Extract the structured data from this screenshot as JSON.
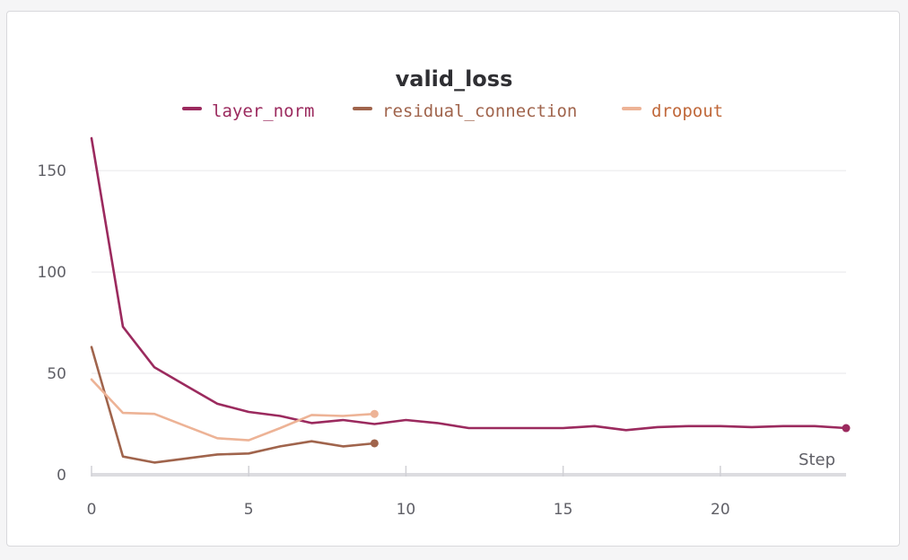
{
  "chart_data": {
    "type": "line",
    "title": "valid_loss",
    "xlabel": "Step",
    "ylabel": "",
    "xlim": [
      0,
      24
    ],
    "ylim": [
      0,
      170
    ],
    "x_ticks": [
      0,
      5,
      10,
      15,
      20
    ],
    "y_ticks": [
      0,
      50,
      100,
      150
    ],
    "grid": true,
    "legend_position": "top-center",
    "series": [
      {
        "name": "layer_norm",
        "color": "#9b2a5e",
        "x": [
          0,
          1,
          2,
          3,
          4,
          5,
          6,
          7,
          8,
          9,
          10,
          11,
          12,
          13,
          14,
          15,
          16,
          17,
          18,
          19,
          20,
          21,
          22,
          23,
          24
        ],
        "values": [
          166,
          73,
          53,
          44,
          35,
          31,
          29,
          25.5,
          27,
          25,
          27,
          25.5,
          23,
          23,
          23,
          23,
          24,
          22,
          23.5,
          24,
          24,
          23.5,
          24,
          24,
          23
        ]
      },
      {
        "name": "residual_connection",
        "color": "#a0644c",
        "x": [
          0,
          1,
          2,
          3,
          4,
          5,
          6,
          7,
          8,
          9
        ],
        "values": [
          63,
          9,
          6,
          8,
          10,
          10.5,
          14,
          16.5,
          14,
          15.5
        ]
      },
      {
        "name": "dropout",
        "color": "#edb396",
        "x": [
          0,
          1,
          2,
          3,
          4,
          5,
          6,
          7,
          8,
          9
        ],
        "values": [
          47,
          30.5,
          30,
          24,
          18,
          17,
          23,
          29.5,
          29,
          30
        ]
      }
    ]
  }
}
